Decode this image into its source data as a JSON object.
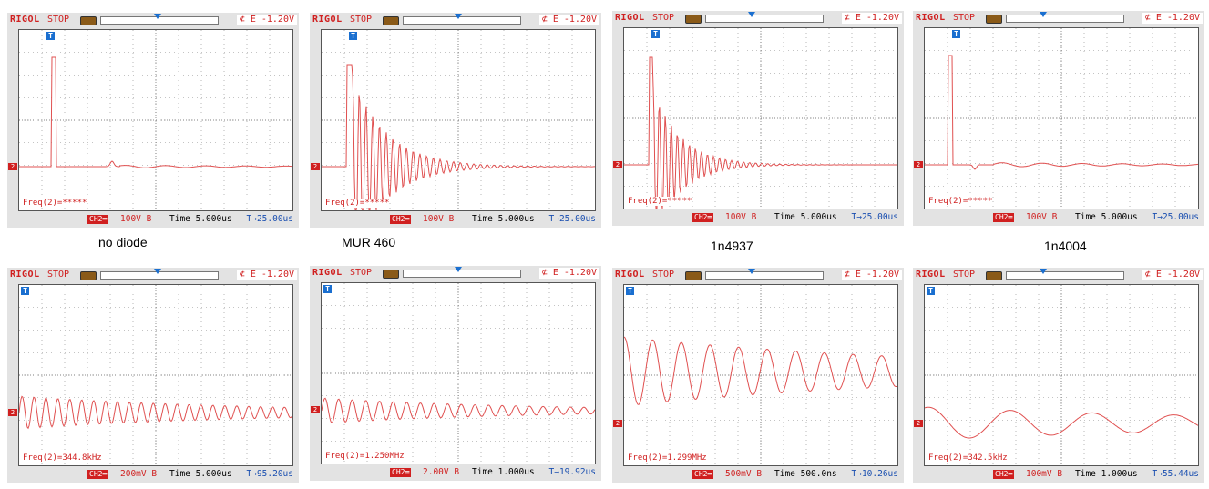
{
  "scopes": [
    {
      "brand": "RIGOL",
      "status": "STOP",
      "trigger": "⊄ E -1.20V",
      "trig_tag": "T",
      "ch_tag": "2",
      "freq": "Freq(2)=*****",
      "ch2": "CH2═",
      "volts": "100V",
      "bw": "B",
      "timebase": "Time 5.000us",
      "tpos": "T→25.00us",
      "caption": "no diode"
    },
    {
      "brand": "RIGOL",
      "status": "STOP",
      "trigger": "⊄ E -1.20V",
      "trig_tag": "T",
      "ch_tag": "2",
      "freq": "Freq(2)=*****",
      "ch2": "CH2═",
      "volts": "100V",
      "bw": "B",
      "timebase": "Time 5.000us",
      "tpos": "T→25.00us",
      "caption": "MUR 460"
    },
    {
      "brand": "RIGOL",
      "status": "STOP",
      "trigger": "⊄ E -1.20V",
      "trig_tag": "T",
      "ch_tag": "2",
      "freq": "Freq(2)=*****",
      "ch2": "CH2═",
      "volts": "100V",
      "bw": "B",
      "timebase": "Time 5.000us",
      "tpos": "T→25.00us",
      "caption": "1n4937"
    },
    {
      "brand": "RIGOL",
      "status": "STOP",
      "trigger": "⊄ E -1.20V",
      "trig_tag": "T",
      "ch_tag": "2",
      "freq": "Freq(2)=*****",
      "ch2": "CH2═",
      "volts": "100V",
      "bw": "B",
      "timebase": "Time 5.000us",
      "tpos": "T→25.00us",
      "caption": "1n4004"
    },
    {
      "brand": "RIGOL",
      "status": "STOP",
      "trigger": "⊄ E -1.20V",
      "trig_tag": "T",
      "ch_tag": "2",
      "freq": "Freq(2)=344.8kHz",
      "ch2": "CH2═",
      "volts": "200mV",
      "bw": "B",
      "timebase": "Time 5.000us",
      "tpos": "T→95.20us"
    },
    {
      "brand": "RIGOL",
      "status": "STOP",
      "trigger": "⊄ E -1.20V",
      "trig_tag": "T",
      "ch_tag": "2",
      "freq": "Freq(2)=1.250MHz",
      "ch2": "CH2═",
      "volts": "2.00V",
      "bw": "B",
      "timebase": "Time 1.000us",
      "tpos": "T→19.92us"
    },
    {
      "brand": "RIGOL",
      "status": "STOP",
      "trigger": "⊄ E -1.20V",
      "trig_tag": "T",
      "ch_tag": "2",
      "freq": "Freq(2)=1.299MHz",
      "ch2": "CH2═",
      "volts": "500mV",
      "bw": "B",
      "timebase": "Time 500.0ns",
      "tpos": "T→10.26us"
    },
    {
      "brand": "RIGOL",
      "status": "STOP",
      "trigger": "⊄ E -1.20V",
      "trig_tag": "T",
      "ch_tag": "2",
      "freq": "Freq(2)=342.5kHz",
      "ch2": "CH2═",
      "volts": "100mV",
      "bw": "B",
      "timebase": "Time 1.000us",
      "tpos": "T→55.44us"
    }
  ]
}
